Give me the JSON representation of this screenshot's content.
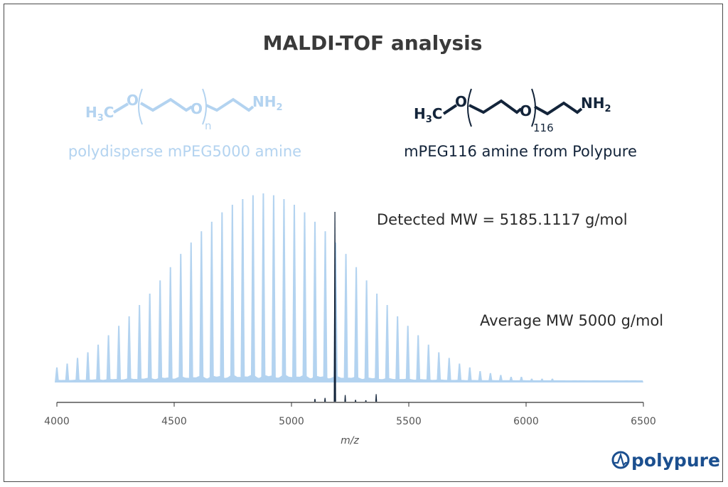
{
  "colors": {
    "light_series": "#b3d3f0",
    "dark_series": "#13243a",
    "frame": "#4a4a4a",
    "logo": "#1b4f8f"
  },
  "structures": {
    "left": {
      "h3c": "H",
      "h3c_sub": "3",
      "h3c_c": "C",
      "o1": "O",
      "o2": "O",
      "nh2": "NH",
      "nh2_sub": "2",
      "repeat_index": "n",
      "caption": "polydisperse mPEG5000 amine"
    },
    "right": {
      "h3c": "H",
      "h3c_sub": "3",
      "h3c_c": "C",
      "o1": "O",
      "o2": "O",
      "nh2": "NH",
      "nh2_sub": "2",
      "repeat_index": "116",
      "caption": "mPEG116 amine from Polypure"
    }
  },
  "logo": {
    "text": "polypure",
    "icon": "polypure-logo-icon"
  },
  "chart_data": {
    "type": "bar",
    "title": "MALDI-TOF analysis",
    "xlabel": "m/z",
    "ylabel": "",
    "xlim": [
      4000,
      6500
    ],
    "xticks": [
      4000,
      4500,
      5000,
      5500,
      6000,
      6500
    ],
    "grid": false,
    "annotations": [
      {
        "text": "Detected MW = 5185.1117 g/mol",
        "series": "mPEG116 amine from Polypure"
      },
      {
        "text": "Average MW 5000 g/mol",
        "series": "polydisperse mPEG5000 amine"
      }
    ],
    "series": [
      {
        "name": "polydisperse mPEG5000 amine",
        "x": [
          4000,
          4044,
          4088,
          4132,
          4176,
          4220,
          4264,
          4308,
          4352,
          4396,
          4440,
          4484,
          4528,
          4572,
          4616,
          4660,
          4704,
          4748,
          4792,
          4836,
          4880,
          4924,
          4968,
          5012,
          5056,
          5100,
          5144,
          5188,
          5232,
          5276,
          5320,
          5364,
          5408,
          5452,
          5496,
          5540,
          5584,
          5628,
          5672,
          5716,
          5760,
          5804,
          5848,
          5892,
          5936,
          5980,
          6024,
          6068,
          6112,
          6156,
          6200,
          6244,
          6288,
          6332,
          6376,
          6420,
          6464
        ],
        "y": [
          8,
          10,
          13,
          16,
          20,
          25,
          30,
          35,
          41,
          47,
          54,
          61,
          68,
          74,
          80,
          85,
          90,
          94,
          97,
          99,
          100,
          99,
          97,
          94,
          90,
          85,
          80,
          74,
          68,
          61,
          54,
          47,
          41,
          35,
          30,
          25,
          20,
          16,
          13,
          10,
          8,
          6,
          5,
          4,
          3,
          3,
          2,
          2,
          2,
          1,
          1,
          1,
          1,
          1,
          1,
          1,
          1
        ]
      },
      {
        "name": "mPEG116 amine from Polypure",
        "x": [
          5100,
          5143,
          5185.11,
          5229,
          5273,
          5317,
          5361
        ],
        "y": [
          1.5,
          2,
          100,
          3.5,
          1,
          0.8,
          4
        ]
      }
    ]
  }
}
